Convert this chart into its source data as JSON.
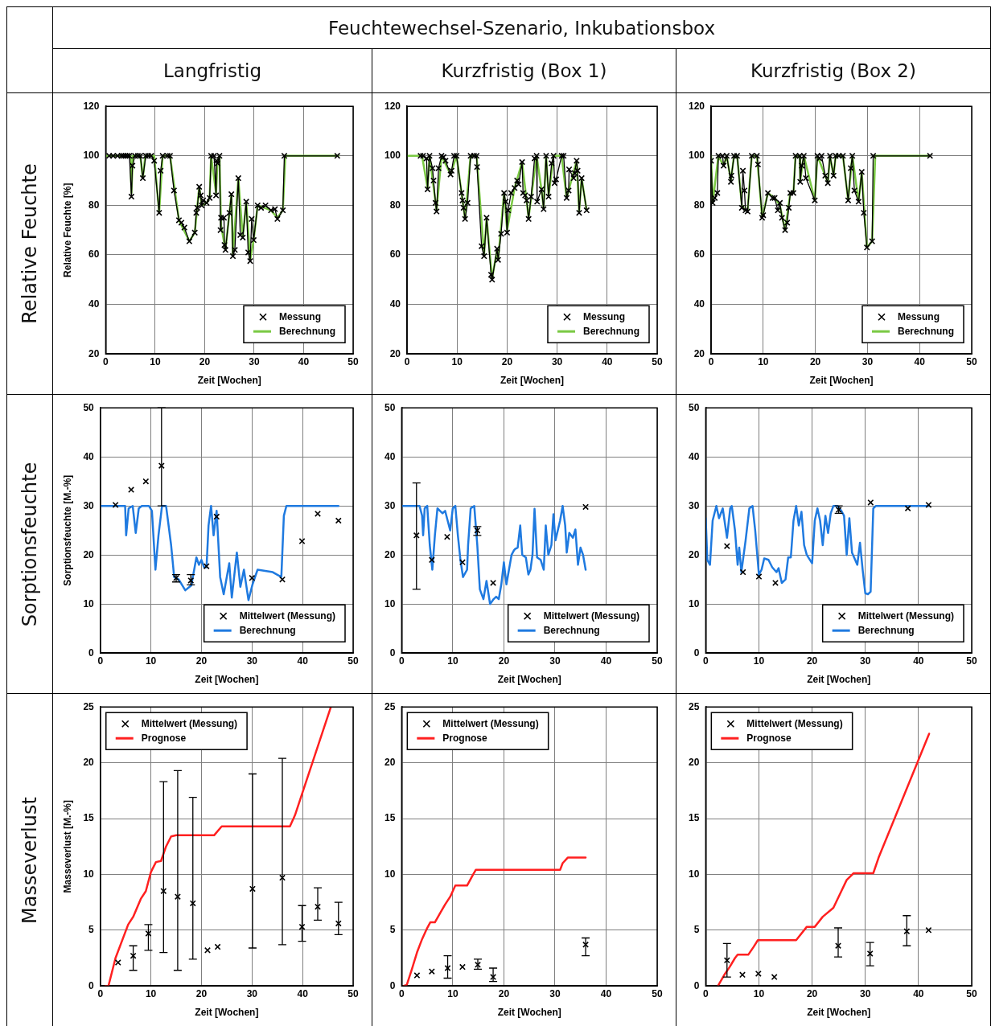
{
  "chart_data": [
    {
      "type": "other",
      "annotations": [
        "Feuchtewechsel-Szenario, Inkubationsbox",
        "Langfristig",
        "Kurzfristig (Box 1)",
        "Kurzfristig (Box 2)",
        "Relative Feuchte",
        "Sorptionsfeuchte",
        "Masseverlust"
      ]
    },
    {
      "type": "line",
      "xlabel": "Zeit [Wochen]",
      "ylabel": "Relative Feuchte [%]",
      "xlim": [
        0,
        50
      ],
      "xticks": [
        0,
        10,
        20,
        30,
        40,
        50
      ],
      "ylim": [
        20,
        120
      ],
      "yticks": [
        20,
        40,
        60,
        80,
        100,
        120
      ],
      "grid": true,
      "legend": "bottom right",
      "series": [
        {
          "name": "Messung",
          "type": "line",
          "marker": "cross",
          "color": "#000000",
          "x": [
            0.7,
            1.5,
            2.4,
            3.2,
            3.6,
            4,
            4.4,
            4.8,
            5.2,
            5.4,
            5.9,
            6.5,
            7,
            7.5,
            8.1,
            8.6,
            9.2,
            9.8,
            10.8,
            11.1,
            11.5,
            12.5,
            13,
            13.8,
            14.8,
            15.3,
            15.9,
            16.9,
            18,
            18.3,
            18.5,
            18.9,
            19.2,
            19.4,
            19.7,
            20.4,
            21,
            21.3,
            21.9,
            22.3,
            22.4,
            22.6,
            23,
            23.2,
            23.3,
            23.9,
            24,
            24.2,
            25,
            25.4,
            25.7,
            26.1,
            26.8,
            27.2,
            27.7,
            28.4,
            28.8,
            29.2,
            29.5,
            29.9,
            30.7,
            31.4,
            32.3,
            33.4,
            34.2,
            34.7,
            35.8,
            36.1,
            46.8
          ],
          "values": [
            100,
            100,
            100,
            100,
            100,
            100,
            100,
            100,
            83.5,
            96,
            100,
            100,
            100,
            91,
            100,
            100,
            100,
            98,
            77,
            94,
            100,
            100,
            100,
            86,
            74,
            73,
            71,
            65.5,
            69,
            77,
            79,
            87.5,
            84,
            80,
            82,
            81,
            83,
            100,
            100,
            84,
            98,
            97,
            100,
            70,
            75,
            75,
            64,
            62,
            77,
            84.5,
            59.5,
            62,
            91,
            68,
            67,
            81.5,
            61,
            57.5,
            74.5,
            66,
            80,
            79,
            80,
            78,
            78.5,
            74.5,
            78,
            100,
            100
          ]
        },
        {
          "name": "Berechnung",
          "type": "line",
          "marker": "none",
          "color": "#7ac943",
          "x": [
            0,
            5,
            5.2,
            5.5,
            7,
            7.5,
            8,
            9.8,
            10.8,
            11.5,
            13,
            14.8,
            16.9,
            18,
            18.9,
            19.4,
            20.4,
            21,
            21.3,
            22.3,
            22.6,
            23,
            23.3,
            24.2,
            25.4,
            25.7,
            26.8,
            27.7,
            28.4,
            29.2,
            29.9,
            30.7,
            33.4,
            34.7,
            35.8,
            36.3,
            47
          ],
          "values": [
            100,
            100,
            85,
            100,
            100,
            91,
            100,
            100,
            77,
            100,
            100,
            74,
            65.5,
            69,
            87.5,
            80,
            81,
            83,
            100,
            85,
            98,
            100,
            72,
            62,
            84.5,
            60,
            91,
            67,
            81.5,
            58,
            66,
            80,
            78,
            75,
            78,
            100,
            100
          ]
        }
      ]
    },
    {
      "type": "line",
      "xlabel": "Zeit [Wochen]",
      "xlim": [
        0,
        50
      ],
      "xticks": [
        0,
        10,
        20,
        30,
        40,
        50
      ],
      "ylim": [
        20,
        120
      ],
      "yticks": [
        20,
        40,
        60,
        80,
        100,
        120
      ],
      "grid": true,
      "legend": "bottom right",
      "series": [
        {
          "name": "Messung",
          "type": "line",
          "marker": "cross",
          "color": "#000000",
          "x": [
            2.7,
            3.2,
            3.9,
            4.1,
            4.5,
            5.1,
            5.3,
            5.7,
            5.9,
            6.3,
            6.9,
            7.3,
            7.7,
            8.7,
            8.9,
            9.4,
            9.9,
            10.9,
            11.1,
            11.3,
            11.6,
            12.1,
            12.7,
            13.4,
            13.9,
            14,
            14.9,
            15.4,
            15.9,
            16.8,
            17,
            18,
            18.2,
            18.8,
            19.4,
            19.7,
            20,
            20.2,
            20.8,
            21.5,
            22,
            22.3,
            23,
            23.2,
            23.6,
            23.9,
            24.3,
            24.8,
            25.5,
            25.9,
            26,
            26.9,
            27.3,
            27.8,
            28.3,
            28.9,
            29.3,
            29.5,
            29.8,
            30.9,
            31.3,
            31.9,
            32.3,
            32.4,
            33.3,
            33.5,
            33.9,
            34.1,
            34.4,
            34.9,
            35.9
          ],
          "values": [
            100,
            100,
            99,
            86.5,
            100,
            95,
            90,
            81,
            77.5,
            95,
            100,
            99.5,
            98,
            92.5,
            94,
            100,
            100,
            85,
            82,
            79,
            74.5,
            81,
            100,
            100,
            100,
            95.5,
            63.5,
            59.5,
            75,
            52,
            50,
            62.5,
            58,
            68.5,
            85,
            81.5,
            69,
            78,
            85,
            87,
            90,
            88.5,
            97.5,
            85,
            84,
            82,
            74.5,
            83.5,
            99,
            100,
            81.5,
            86.5,
            78.5,
            100,
            83.5,
            97,
            100,
            89,
            90.5,
            100,
            100,
            83,
            86,
            94.5,
            91,
            93,
            98,
            94,
            77,
            91,
            78
          ]
        },
        {
          "name": "Berechnung",
          "type": "line",
          "marker": "none",
          "color": "#7ac943",
          "x": [
            0,
            3,
            4.1,
            4.5,
            5.9,
            6.9,
            8.7,
            9.9,
            11.6,
            12.7,
            13.9,
            15.4,
            15.9,
            17,
            18,
            18.2,
            19.4,
            20,
            21.5,
            23,
            24.3,
            25.9,
            26.9,
            27.3,
            27.8,
            28.3,
            29.3,
            30.9,
            31.9,
            33.9,
            34.4,
            34.9,
            35.9
          ],
          "values": [
            100,
            100,
            87,
            100,
            78,
            100,
            92.5,
            100,
            74.5,
            100,
            100,
            60,
            75,
            50.5,
            62,
            58,
            85,
            70,
            87,
            97.5,
            75,
            100,
            86,
            79,
            100,
            84,
            100,
            100,
            83,
            98,
            77.5,
            91,
            78
          ]
        }
      ]
    },
    {
      "type": "line",
      "xlabel": "Zeit [Wochen]",
      "xlim": [
        0,
        50
      ],
      "xticks": [
        0,
        10,
        20,
        30,
        40,
        50
      ],
      "ylim": [
        20,
        120
      ],
      "yticks": [
        20,
        40,
        60,
        80,
        100,
        120
      ],
      "grid": true,
      "legend": "bottom right",
      "series": [
        {
          "name": "Messung",
          "type": "line",
          "marker": "cross",
          "color": "#000000",
          "x": [
            0,
            0.3,
            0.7,
            1.2,
            1.4,
            2.2,
            2.4,
            3,
            3.8,
            3.9,
            4.4,
            5,
            5.9,
            6.1,
            6.4,
            6.6,
            7,
            7.8,
            8.8,
            9,
            9.8,
            10,
            10.9,
            11.8,
            12.2,
            12.8,
            13.2,
            13.6,
            14.2,
            14.6,
            14.9,
            15.2,
            15.8,
            16.2,
            17,
            17.1,
            17.4,
            17.8,
            18.2,
            19.9,
            20.4,
            20.8,
            21.2,
            21.9,
            22.4,
            22.8,
            23.5,
            23.9,
            24.5,
            25.3,
            26.3,
            26.8,
            27.1,
            27.5,
            28.3,
            28.9,
            29.3,
            29.9,
            30.9,
            31.1,
            42
          ],
          "values": [
            98,
            81,
            83,
            85,
            100,
            100,
            96,
            100,
            89.5,
            92,
            100,
            100,
            79,
            94,
            86,
            78,
            77.5,
            100,
            100,
            96.5,
            75,
            76,
            85,
            83,
            83,
            78,
            81,
            75,
            70,
            73,
            79,
            85,
            85,
            100,
            100,
            89.5,
            96,
            100,
            91,
            82,
            100,
            99,
            100,
            92,
            89,
            100,
            92,
            100,
            100,
            100,
            82,
            95,
            100,
            86,
            81.5,
            93.5,
            77,
            63,
            65.5,
            100,
            100
          ]
        },
        {
          "name": "Berechnung",
          "type": "line",
          "marker": "none",
          "color": "#7ac943",
          "x": [
            0,
            0.3,
            1.4,
            2.4,
            3,
            3.8,
            4.4,
            5,
            5.9,
            6.6,
            7,
            7.8,
            8.8,
            9.8,
            10.9,
            12.2,
            13.2,
            14.2,
            15.2,
            15.8,
            16.2,
            17,
            17.1,
            17.8,
            19.9,
            20.4,
            21.9,
            22.4,
            22.8,
            23.5,
            23.9,
            25.3,
            26.3,
            27.1,
            28.3,
            28.9,
            29.9,
            30.9,
            31.5,
            42
          ],
          "values": [
            100,
            81,
            100,
            96,
            100,
            90,
            100,
            100,
            80,
            78,
            78,
            100,
            100,
            75,
            85,
            83,
            80,
            70,
            85,
            85,
            100,
            100,
            90,
            100,
            82,
            100,
            92,
            89,
            100,
            92,
            100,
            100,
            82,
            100,
            81.5,
            93.5,
            63,
            65.5,
            100,
            100
          ]
        }
      ]
    },
    {
      "type": "line",
      "xlabel": "Zeit [Wochen]",
      "ylabel": "Sorptionsfeuchte [M.-%]",
      "xlim": [
        0,
        50
      ],
      "xticks": [
        0,
        10,
        20,
        30,
        40,
        50
      ],
      "ylim": [
        0,
        50
      ],
      "yticks": [
        0,
        10,
        20,
        30,
        40,
        50
      ],
      "grid": true,
      "legend": "bottom right",
      "series": [
        {
          "name": "Mittelwert (Messung)",
          "type": "scatter",
          "marker": "cross",
          "color": "#000000",
          "x": [
            3,
            6.1,
            9,
            12.1,
            15,
            17.9,
            21,
            23,
            30,
            36,
            39.9,
            43,
            47.1
          ],
          "values": [
            30.2,
            33.3,
            35,
            38.2,
            15.3,
            14.8,
            17.7,
            27.8,
            15.3,
            15,
            22.8,
            28.4,
            27
          ],
          "errors": [
            null,
            null,
            null,
            [
              30,
              50
            ],
            [
              14.5,
              16
            ],
            [
              13.9,
              16
            ],
            null,
            null,
            null,
            null,
            null,
            null,
            null
          ]
        },
        {
          "name": "Berechnung",
          "type": "line",
          "marker": "none",
          "color": "#1f7ae0",
          "x": [
            0,
            4.9,
            5.1,
            5.6,
            6.4,
            7,
            7.6,
            8.2,
            9.6,
            10.2,
            10.9,
            11.5,
            12.2,
            13,
            14,
            14.6,
            15.5,
            16.8,
            18,
            19,
            19.5,
            20,
            20.5,
            21,
            21.4,
            21.9,
            22.4,
            23,
            23.7,
            24.4,
            25.5,
            26,
            27,
            27.7,
            28.4,
            29.3,
            30.1,
            31.1,
            34.1,
            35.8,
            36.3,
            36.8,
            47.1
          ],
          "values": [
            30,
            30,
            24,
            29.5,
            30,
            24.5,
            29.5,
            30,
            30,
            29,
            17,
            24,
            30,
            30,
            22,
            15.5,
            15,
            12.8,
            13.8,
            19.5,
            18,
            19,
            17.5,
            17.5,
            26,
            30,
            24,
            29,
            15.5,
            12,
            18.3,
            11.3,
            20.5,
            13.5,
            17,
            10.8,
            14,
            17,
            16.5,
            15.5,
            28,
            30,
            30
          ]
        }
      ]
    },
    {
      "type": "line",
      "xlabel": "Zeit [Wochen]",
      "xlim": [
        0,
        50
      ],
      "xticks": [
        0,
        10,
        20,
        30,
        40,
        50
      ],
      "ylim": [
        0,
        50
      ],
      "yticks": [
        0,
        10,
        20,
        30,
        40,
        50
      ],
      "grid": true,
      "legend": "bottom right",
      "series": [
        {
          "name": "Mittelwert (Messung)",
          "type": "scatter",
          "marker": "cross",
          "color": "#000000",
          "x": [
            2.9,
            5.9,
            8.9,
            11.9,
            14.8,
            17.9,
            36
          ],
          "values": [
            24,
            19,
            23.7,
            18.5,
            25,
            14.3,
            29.8
          ],
          "errors": [
            [
              13,
              34.7
            ],
            null,
            null,
            null,
            [
              24,
              25.8
            ],
            null,
            null
          ]
        },
        {
          "name": "Berechnung",
          "type": "line",
          "marker": "none",
          "color": "#1f7ae0",
          "x": [
            0,
            3.5,
            4,
            4.2,
            4.5,
            5,
            5.5,
            6,
            6.5,
            7,
            7.5,
            8,
            8.5,
            9,
            9.5,
            10,
            10.5,
            11,
            11.5,
            12,
            12.8,
            13,
            13.5,
            14.2,
            14.8,
            15.3,
            16,
            16.6,
            17.3,
            18,
            18.5,
            19,
            19.5,
            20,
            20.5,
            21,
            21.5,
            22,
            22.3,
            22.7,
            23.2,
            23.6,
            24.3,
            24.8,
            25.2,
            25.6,
            26,
            26.5,
            27.2,
            27.8,
            28.2,
            28.7,
            29.3,
            29.7,
            30.1,
            31,
            31.5,
            32,
            32.3,
            32.8,
            33.5,
            34,
            34.5,
            35,
            35.5,
            36
          ],
          "values": [
            30,
            30,
            28,
            24,
            29.5,
            30,
            22,
            17,
            24,
            29.5,
            29,
            28.5,
            29,
            27,
            25,
            29.5,
            30,
            24,
            19,
            15.5,
            17,
            22,
            29.5,
            30,
            22,
            13,
            11,
            14.7,
            10,
            11,
            11.5,
            11,
            14,
            18.5,
            14,
            17,
            20,
            21,
            21.3,
            21.5,
            26,
            20,
            19.5,
            16,
            17,
            20,
            29.4,
            19.5,
            19,
            17,
            26,
            20,
            22,
            28.3,
            23,
            27,
            30,
            26,
            20.5,
            24.5,
            23.5,
            25.2,
            18,
            21.5,
            20,
            17
          ]
        }
      ]
    },
    {
      "type": "line",
      "xlabel": "Zeit [Wochen]",
      "xlim": [
        0,
        50
      ],
      "xticks": [
        0,
        10,
        20,
        30,
        40,
        50
      ],
      "ylim": [
        0,
        50
      ],
      "yticks": [
        0,
        10,
        20,
        30,
        40,
        50
      ],
      "grid": true,
      "legend": "bottom right",
      "series": [
        {
          "name": "Mittelwert (Messung)",
          "type": "scatter",
          "marker": "cross",
          "color": "#000000",
          "x": [
            4,
            7,
            10,
            13.1,
            25,
            31,
            38,
            41.9
          ],
          "values": [
            21.8,
            16.5,
            15.6,
            14.3,
            29.2,
            30.7,
            29.5,
            30.2
          ],
          "errors": [
            null,
            null,
            null,
            null,
            [
              28.5,
              30
            ],
            null,
            null,
            null
          ]
        },
        {
          "name": "Berechnung",
          "type": "line",
          "marker": "none",
          "color": "#1f7ae0",
          "x": [
            0,
            0.3,
            0.8,
            1.3,
            2,
            2.5,
            3.2,
            4,
            4.6,
            4.9,
            5.5,
            6,
            6.3,
            6.7,
            7.5,
            8.2,
            8.8,
            9.3,
            10,
            10.5,
            11,
            11.8,
            12.5,
            13.3,
            13.7,
            14.3,
            15,
            15.5,
            16,
            16.5,
            17,
            17.5,
            18,
            18.5,
            19,
            20,
            20.5,
            21,
            21.5,
            22,
            22.5,
            23,
            23.5,
            24,
            24.8,
            25.5,
            26,
            26.5,
            27,
            27.5,
            28.5,
            29,
            29.5,
            30,
            30.5,
            31,
            31.5,
            32,
            42
          ],
          "values": [
            27.5,
            19,
            18,
            27,
            30,
            27.5,
            29.5,
            23.5,
            29.5,
            30,
            25,
            18,
            21.5,
            16.5,
            23,
            29.5,
            30,
            25,
            16,
            17,
            19.3,
            19,
            17.5,
            16.5,
            17.3,
            14.3,
            15,
            19.5,
            19.5,
            27,
            30,
            26,
            28.8,
            22,
            20,
            18.3,
            27,
            29.5,
            27,
            22,
            28,
            24.5,
            28.5,
            30,
            30,
            29,
            28,
            20,
            27.5,
            20.5,
            18,
            22.5,
            17,
            12.2,
            12,
            12.5,
            29.5,
            30,
            30
          ]
        }
      ]
    },
    {
      "type": "line",
      "xlabel": "Zeit [Wochen]",
      "ylabel": "Masseverlust [M.-%]",
      "xlim": [
        0,
        50
      ],
      "xticks": [
        0,
        10,
        20,
        30,
        40,
        50
      ],
      "ylim": [
        0,
        25
      ],
      "yticks": [
        0,
        5,
        10,
        15,
        20,
        25
      ],
      "grid": true,
      "legend": "top left",
      "series": [
        {
          "name": "Mittelwert (Messung)",
          "type": "scatter",
          "marker": "cross",
          "color": "#000000",
          "x": [
            3.5,
            6.5,
            9.5,
            12.5,
            15.3,
            18.3,
            21.2,
            23.2,
            30.1,
            36,
            39.9,
            43,
            47.1
          ],
          "values": [
            2.1,
            2.7,
            4.7,
            8.5,
            8,
            7.4,
            3.2,
            3.5,
            8.7,
            9.7,
            5.3,
            7.1,
            5.6
          ],
          "errors": [
            null,
            [
              1.4,
              3.6
            ],
            [
              3.2,
              5.5
            ],
            [
              3,
              18.3
            ],
            [
              1.4,
              19.3
            ],
            [
              2.4,
              16.9
            ],
            null,
            null,
            [
              3.4,
              19
            ],
            [
              3.7,
              20.4
            ],
            [
              4,
              7.2
            ],
            [
              5.9,
              8.8
            ],
            [
              4.6,
              7.5
            ]
          ]
        },
        {
          "name": "Prognose",
          "type": "line",
          "marker": "none",
          "color": "#ff2020",
          "x": [
            1,
            1.6,
            3,
            5.5,
            6.5,
            8,
            9,
            10,
            11,
            12,
            13,
            14,
            15,
            22.5,
            24,
            37.5,
            38.5,
            45.6
          ],
          "values": [
            0,
            0,
            2.5,
            5.5,
            6.2,
            7.8,
            8.5,
            10.2,
            11.1,
            11.2,
            12.5,
            13.4,
            13.5,
            13.5,
            14.3,
            14.3,
            15.3,
            25
          ]
        }
      ]
    },
    {
      "type": "line",
      "xlabel": "Zeit [Wochen]",
      "xlim": [
        0,
        50
      ],
      "xticks": [
        0,
        10,
        20,
        30,
        40,
        50
      ],
      "ylim": [
        0,
        25
      ],
      "yticks": [
        0,
        5,
        10,
        15,
        20,
        25
      ],
      "grid": true,
      "legend": "top left",
      "series": [
        {
          "name": "Mittelwert (Messung)",
          "type": "scatter",
          "marker": "cross",
          "color": "#000000",
          "x": [
            3,
            5.9,
            9,
            11.9,
            14.9,
            17.9,
            36
          ],
          "values": [
            0.95,
            1.3,
            1.6,
            1.7,
            1.9,
            0.8,
            3.7
          ],
          "errors": [
            null,
            null,
            [
              0.7,
              2.7
            ],
            null,
            [
              1.5,
              2.4
            ],
            [
              0.4,
              1.6
            ],
            [
              2.7,
              4.3
            ]
          ]
        },
        {
          "name": "Prognose",
          "type": "line",
          "marker": "none",
          "color": "#ff2020",
          "x": [
            0.4,
            1,
            2,
            3,
            4,
            5,
            5.6,
            6.5,
            7.5,
            8.5,
            9.5,
            10.5,
            12.8,
            14,
            14.5,
            31,
            31.5,
            32.5,
            36
          ],
          "values": [
            0,
            0.1,
            1.5,
            3,
            4.2,
            5.2,
            5.7,
            5.7,
            6.5,
            7.3,
            8,
            9,
            9,
            10,
            10.4,
            10.4,
            11,
            11.5,
            11.5
          ]
        }
      ]
    },
    {
      "type": "line",
      "xlabel": "Zeit [Wochen]",
      "xlim": [
        0,
        50
      ],
      "xticks": [
        0,
        10,
        20,
        30,
        40,
        50
      ],
      "ylim": [
        0,
        25
      ],
      "yticks": [
        0,
        5,
        10,
        15,
        20,
        25
      ],
      "grid": true,
      "legend": "top left",
      "series": [
        {
          "name": "Mittelwert (Messung)",
          "type": "scatter",
          "marker": "cross",
          "color": "#000000",
          "x": [
            4,
            6.9,
            9.9,
            12.9,
            24.9,
            30.9,
            37.8,
            41.9
          ],
          "values": [
            2.3,
            1,
            1.1,
            0.8,
            3.6,
            2.9,
            4.9,
            5
          ],
          "errors": [
            [
              0.8,
              3.8
            ],
            null,
            null,
            null,
            [
              2.6,
              5.2
            ],
            [
              1.8,
              3.9
            ],
            [
              3.6,
              6.3
            ],
            null
          ]
        },
        {
          "name": "Prognose",
          "type": "line",
          "marker": "none",
          "color": "#ff2020",
          "x": [
            2.3,
            3.5,
            4.5,
            5.5,
            6,
            8,
            9,
            9.8,
            17,
            19,
            20.5,
            22,
            24,
            25.5,
            26.5,
            27.8,
            31.5,
            32.5,
            42
          ],
          "values": [
            0,
            1,
            1.7,
            2.5,
            2.8,
            2.8,
            3.5,
            4.1,
            4.1,
            5.3,
            5.3,
            6.2,
            7,
            8.5,
            9.5,
            10.1,
            10.1,
            11.5,
            22.6
          ]
        }
      ]
    }
  ]
}
